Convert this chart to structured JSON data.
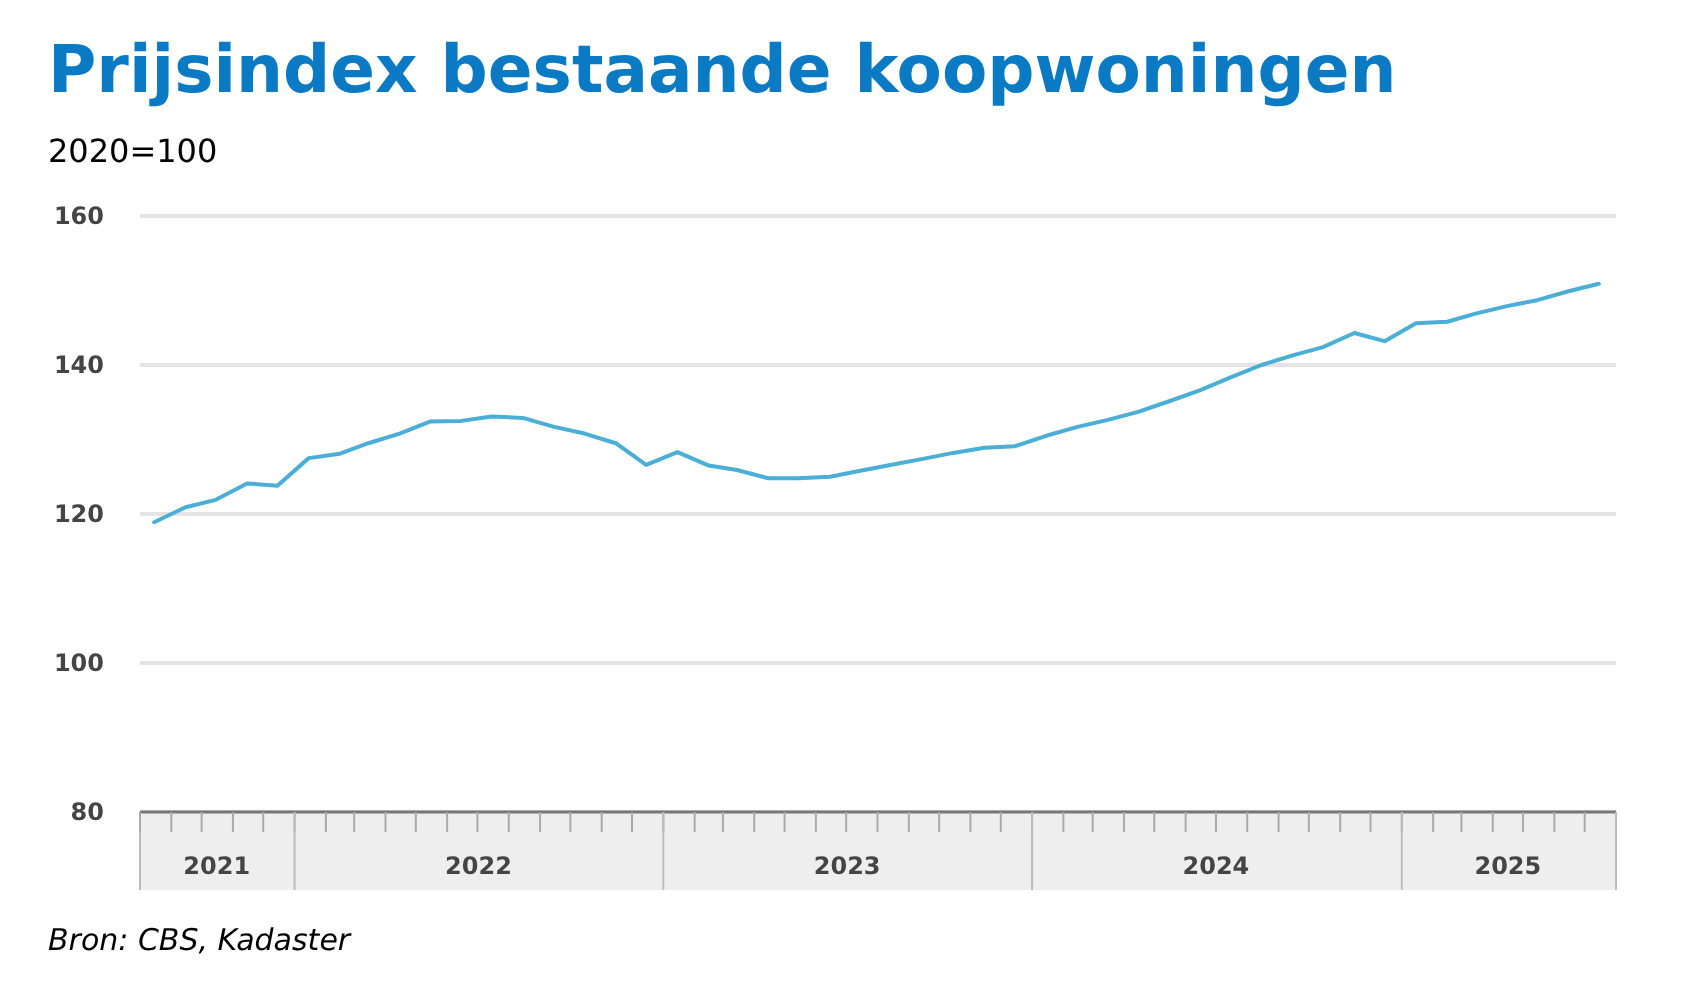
{
  "chart_data": {
    "type": "line",
    "title": "Prijsindex bestaande koopwoningen",
    "subtitle": "2020=100",
    "x": [
      "2021-08-15",
      "2021-09-15",
      "2021-10-15",
      "2021-11-15",
      "2021-12-15",
      "2022-01-15",
      "2022-02-15",
      "2022-03-15",
      "2022-04-15",
      "2022-05-15",
      "2022-06-15",
      "2022-07-15",
      "2022-08-15",
      "2022-09-15",
      "2022-10-15",
      "2022-11-15",
      "2022-12-15",
      "2023-01-15",
      "2023-02-15",
      "2023-03-15",
      "2023-04-15",
      "2023-05-15",
      "2023-06-15",
      "2023-07-15",
      "2023-08-15",
      "2023-09-15",
      "2023-10-15",
      "2023-11-15",
      "2023-12-15",
      "2024-01-15",
      "2024-02-15",
      "2024-03-15",
      "2024-04-15",
      "2024-05-15",
      "2024-06-15",
      "2024-07-15",
      "2024-08-15",
      "2024-09-15",
      "2024-10-15",
      "2024-11-15",
      "2024-12-15",
      "2025-01-15",
      "2025-02-15",
      "2025-03-15",
      "2025-04-15",
      "2025-05-15",
      "2025-06-15",
      "2025-07-15"
    ],
    "series": [
      {
        "color": "#4aaed6",
        "values": [
          118.9,
          120.9,
          121.9,
          124.1,
          123.8,
          127.5,
          128.1,
          129.5,
          130.8,
          132.4,
          132.5,
          133.1,
          132.9,
          131.7,
          130.8,
          129.5,
          126.6,
          128.3,
          126.5,
          125.9,
          124.8,
          124.8,
          125.0,
          125.8,
          126.6,
          127.4,
          128.2,
          128.9,
          129.1,
          130.5,
          131.7,
          132.6,
          133.7,
          135.1,
          136.6,
          138.3,
          140.0,
          141.3,
          142.4,
          144.3,
          143.2,
          145.6,
          145.8,
          146.9,
          147.9,
          148.7,
          149.9,
          150.9
        ]
      }
    ],
    "xlim": [
      "2021-08-01",
      "2025-08-01"
    ],
    "xticks": [
      {
        "value": "2021-10-16",
        "label": "2021"
      },
      {
        "value": "2022-07-02",
        "label": "2022"
      },
      {
        "value": "2023-07-02",
        "label": "2023"
      },
      {
        "value": "2024-07-01",
        "label": "2024"
      },
      {
        "value": "2025-04-16",
        "label": "2025"
      }
    ],
    "ylim": [
      80,
      160
    ],
    "yticks": [
      80,
      100,
      120,
      140,
      160
    ],
    "grid": "y",
    "marker": "none",
    "line_style": "solid",
    "annotations": [
      "Bron: CBS, Kadaster"
    ]
  }
}
